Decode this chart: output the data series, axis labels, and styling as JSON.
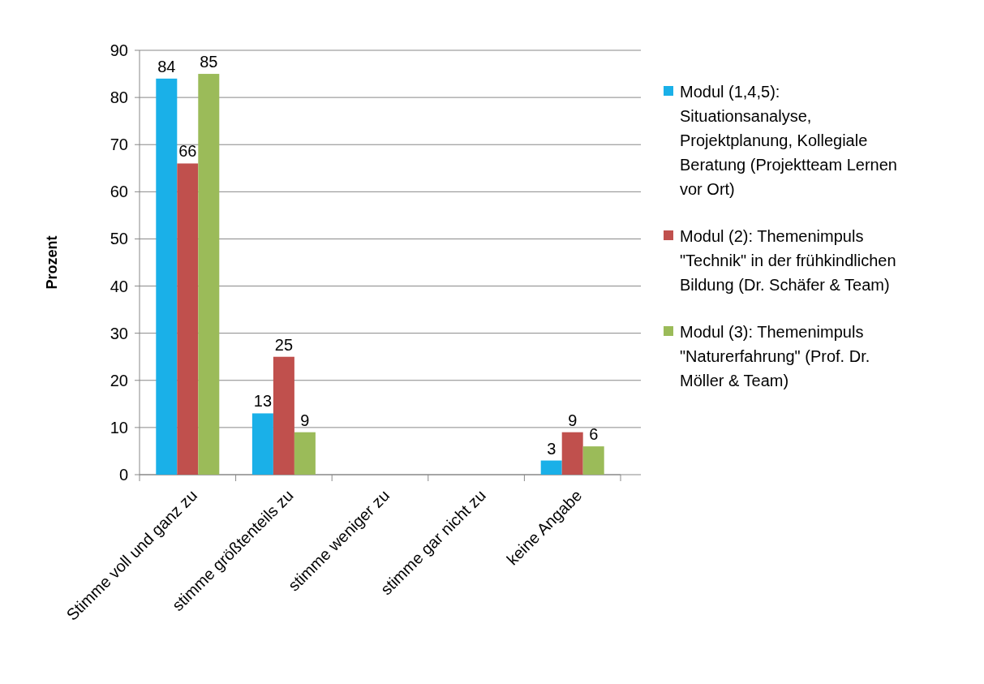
{
  "chart_data": {
    "type": "bar",
    "ylabel": "Prozent",
    "categories": [
      "Stimme voll und ganz zu",
      "stimme größtenteils zu",
      "stimme weniger zu",
      "stimme gar nicht zu",
      "keine Angabe"
    ],
    "series": [
      {
        "name": "Modul (1,4,5): Situationsanalyse, Projektplanung, Kollegiale Beratung (Projektteam Lernen vor Ort)",
        "color": "#1ab0e8",
        "values": [
          84,
          13,
          null,
          null,
          3
        ]
      },
      {
        "name": "Modul (2): Themenimpuls \"Technik\" in der frühkindlichen Bildung (Dr. Schäfer & Team)",
        "color": "#c0504d",
        "values": [
          66,
          25,
          null,
          null,
          9
        ]
      },
      {
        "name": "Modul (3): Themenimpuls \"Naturerfahrung\" (Prof. Dr. Möller & Team)",
        "color": "#9bbb59",
        "values": [
          85,
          9,
          null,
          null,
          6
        ]
      }
    ],
    "ylim": [
      0,
      90
    ],
    "yticks": [
      0,
      10,
      20,
      30,
      40,
      50,
      60,
      70,
      80,
      90
    ],
    "grid": "y",
    "legend": "right",
    "data_labels": true
  }
}
